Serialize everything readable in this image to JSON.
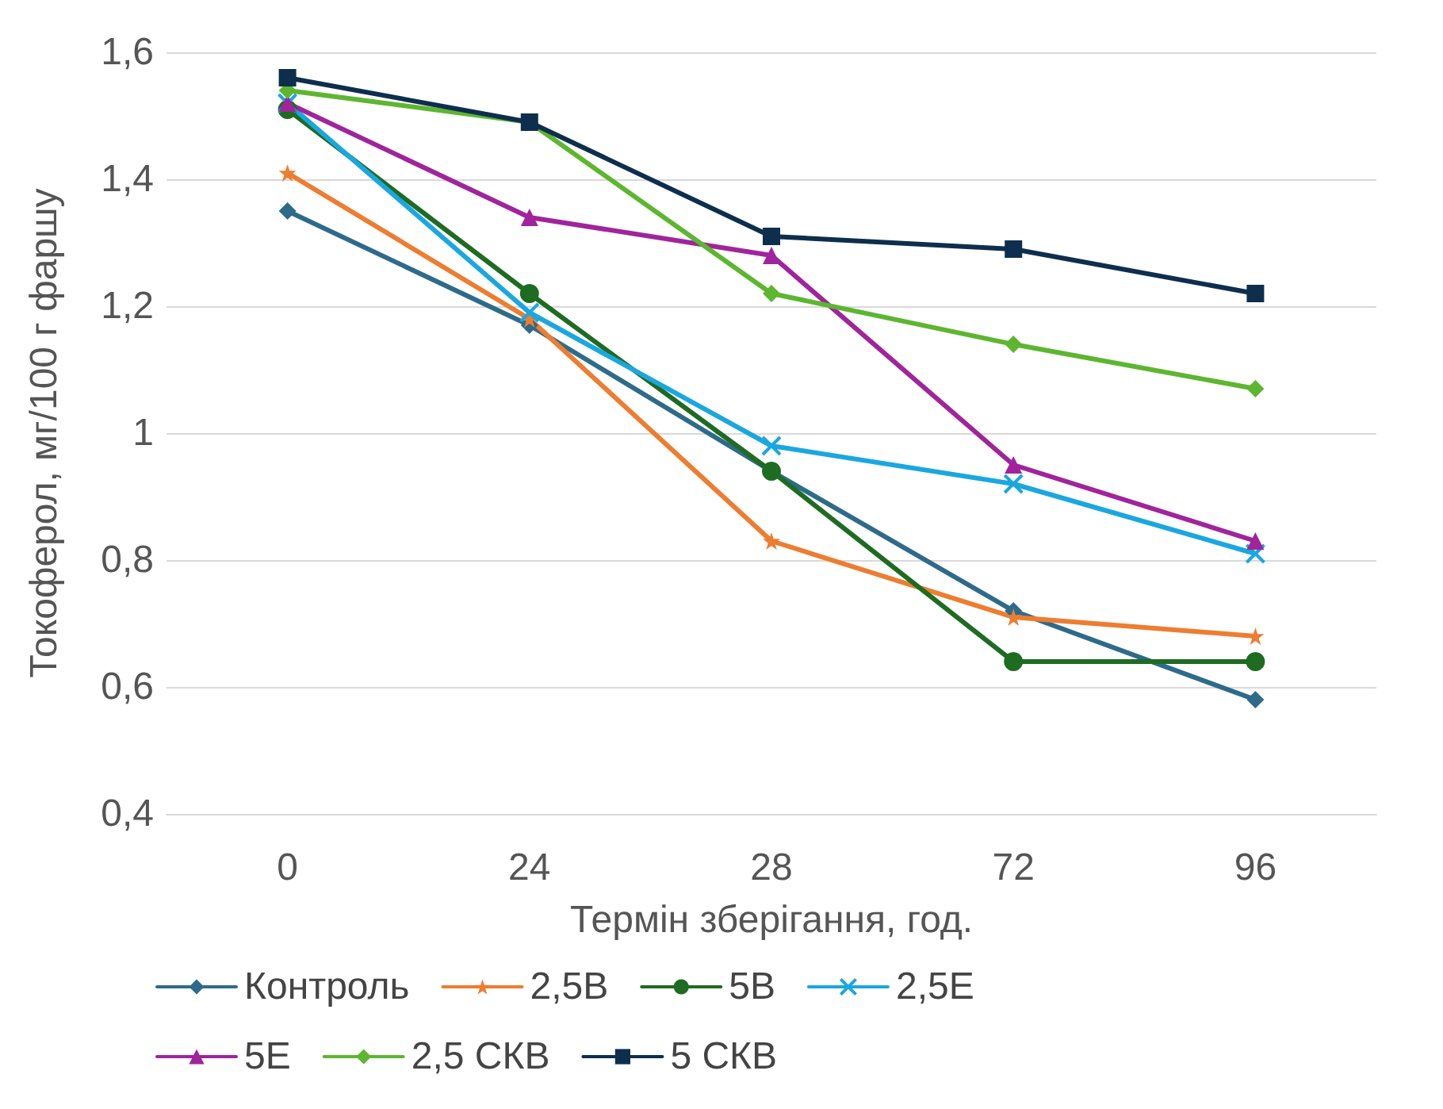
{
  "chart_data": {
    "type": "line",
    "xlabel": "Термін зберігання, год.",
    "ylabel": "Токоферол, мг/100 г фаршу",
    "categories": [
      "0",
      "24",
      "28",
      "72",
      "96"
    ],
    "series": [
      {
        "name": "Контроль",
        "color": "#2e6b8a",
        "marker": "diamond",
        "values": [
          1.35,
          1.17,
          0.94,
          0.72,
          0.58
        ]
      },
      {
        "name": "2,5В",
        "color": "#ed7d31",
        "marker": "star",
        "values": [
          1.41,
          1.18,
          0.83,
          0.71,
          0.68
        ]
      },
      {
        "name": "5В",
        "color": "#1e6b22",
        "marker": "circle",
        "values": [
          1.51,
          1.22,
          0.94,
          0.64,
          0.64
        ]
      },
      {
        "name": "2,5Е",
        "color": "#1aa7e0",
        "marker": "cross",
        "values": [
          1.52,
          1.19,
          0.98,
          0.92,
          0.81
        ]
      },
      {
        "name": "5Е",
        "color": "#a0249b",
        "marker": "triangle",
        "values": [
          1.52,
          1.34,
          1.28,
          0.95,
          0.83
        ]
      },
      {
        "name": "2,5 СКВ",
        "color": "#5db62f",
        "marker": "diamond",
        "values": [
          1.54,
          1.49,
          1.22,
          1.14,
          1.07
        ]
      },
      {
        "name": "5 СКВ",
        "color": "#0e2e4e",
        "marker": "square",
        "values": [
          1.56,
          1.49,
          1.31,
          1.29,
          1.22
        ]
      }
    ],
    "ylim": [
      0.4,
      1.6
    ],
    "yticks": [
      {
        "value": 0.4,
        "label": "0,4"
      },
      {
        "value": 0.6,
        "label": "0,6"
      },
      {
        "value": 0.8,
        "label": "0,8"
      },
      1,
      {
        "value": 1.2,
        "label": "1,2"
      },
      {
        "value": 1.4,
        "label": "1,4"
      },
      {
        "value": 1.6,
        "label": "1,6"
      }
    ],
    "grid": "y",
    "legend": "bottom",
    "line_style": "solid"
  }
}
